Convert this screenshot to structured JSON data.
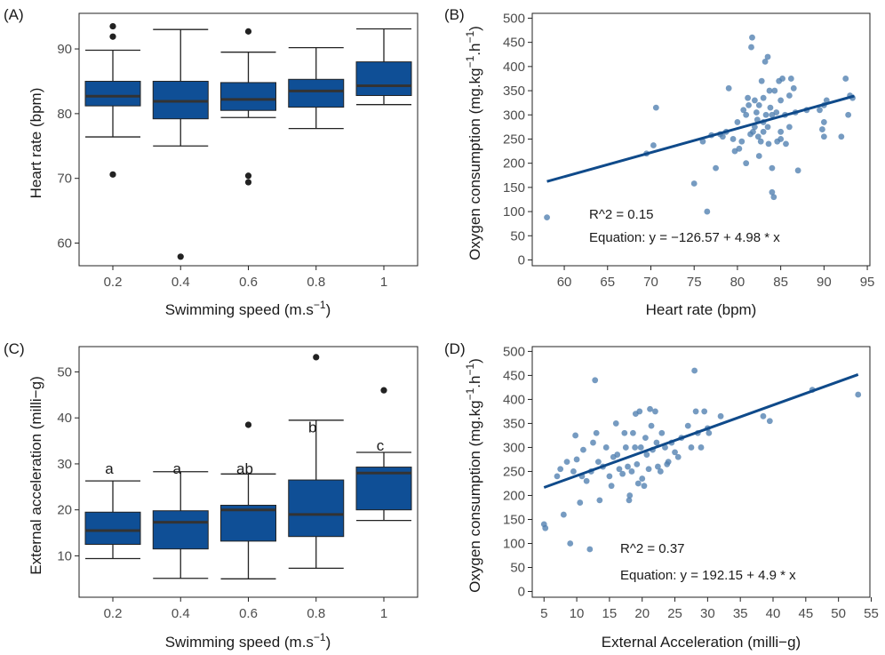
{
  "chart_data": [
    {
      "panel": "(A)",
      "type": "box",
      "xlabel": "Swimming speed (m.s",
      "xlabel_sup": "−1",
      "xlabel_end": ")",
      "ylabel": "Heart rate (bpm)",
      "ylim": [
        56.5,
        95.5
      ],
      "yticks": [
        60,
        70,
        80,
        90
      ],
      "categories": [
        "0.2",
        "0.4",
        "0.6",
        "0.8",
        "1"
      ],
      "boxes": [
        {
          "q1": 81.2,
          "median": 82.7,
          "q3": 85.0,
          "whisker_low": 76.4,
          "whisker_high": 89.8,
          "outliers": [
            93.5,
            91.9,
            70.6
          ]
        },
        {
          "q1": 79.2,
          "median": 81.9,
          "q3": 85.0,
          "whisker_low": 75.0,
          "whisker_high": 93.0,
          "outliers": [
            57.9
          ]
        },
        {
          "q1": 80.5,
          "median": 82.2,
          "q3": 84.8,
          "whisker_low": 79.4,
          "whisker_high": 89.5,
          "outliers": [
            92.7,
            70.4,
            69.4
          ]
        },
        {
          "q1": 81.0,
          "median": 83.5,
          "q3": 85.3,
          "whisker_low": 77.7,
          "whisker_high": 90.2,
          "outliers": []
        },
        {
          "q1": 82.8,
          "median": 84.3,
          "q3": 88.0,
          "whisker_low": 81.4,
          "whisker_high": 93.1,
          "outliers": []
        }
      ],
      "box_color": "#0f4f96"
    },
    {
      "panel": "(B)",
      "type": "scatter",
      "xlabel": "Heart rate (bpm)",
      "ylabel": "Oxygen consumption (mg.kg",
      "ylabel_sup1": "−1",
      "ylabel_mid": ".h",
      "ylabel_sup2": "−1",
      "ylabel_end": ")",
      "xlim": [
        56.3,
        95.3
      ],
      "ylim": [
        -12,
        510
      ],
      "xticks": [
        60,
        65,
        70,
        75,
        80,
        85,
        90,
        95
      ],
      "yticks": [
        0,
        50,
        100,
        150,
        200,
        250,
        300,
        350,
        400,
        450,
        500
      ],
      "points": [
        [
          58,
          88
        ],
        [
          69.5,
          220
        ],
        [
          70.3,
          237
        ],
        [
          70.6,
          315
        ],
        [
          75,
          158
        ],
        [
          76,
          245
        ],
        [
          76.5,
          100
        ],
        [
          77,
          258
        ],
        [
          77.5,
          190
        ],
        [
          78,
          260
        ],
        [
          78.3,
          255
        ],
        [
          78.7,
          265
        ],
        [
          79,
          355
        ],
        [
          79.5,
          250
        ],
        [
          79.7,
          225
        ],
        [
          80,
          285
        ],
        [
          80.2,
          230
        ],
        [
          80.5,
          245
        ],
        [
          80.7,
          310
        ],
        [
          81,
          300
        ],
        [
          81,
          200
        ],
        [
          81.2,
          335
        ],
        [
          81.3,
          320
        ],
        [
          81.5,
          260
        ],
        [
          81.6,
          440
        ],
        [
          81.7,
          460
        ],
        [
          81.8,
          265
        ],
        [
          82,
          275
        ],
        [
          82,
          330
        ],
        [
          82.2,
          305
        ],
        [
          82.3,
          290
        ],
        [
          82.4,
          255
        ],
        [
          82.5,
          320
        ],
        [
          82.5,
          215
        ],
        [
          82.7,
          245
        ],
        [
          82.8,
          370
        ],
        [
          83,
          285
        ],
        [
          83,
          265
        ],
        [
          83,
          335
        ],
        [
          83.2,
          410
        ],
        [
          83.3,
          300
        ],
        [
          83.5,
          420
        ],
        [
          83.5,
          275
        ],
        [
          83.6,
          240
        ],
        [
          83.7,
          350
        ],
        [
          83.8,
          315
        ],
        [
          84,
          300
        ],
        [
          84,
          140
        ],
        [
          84,
          190
        ],
        [
          84.2,
          130
        ],
        [
          84.3,
          350
        ],
        [
          84.5,
          305
        ],
        [
          84.6,
          245
        ],
        [
          84.8,
          370
        ],
        [
          85,
          330
        ],
        [
          85,
          265
        ],
        [
          85,
          250
        ],
        [
          85.2,
          375
        ],
        [
          85.5,
          300
        ],
        [
          85.6,
          240
        ],
        [
          86,
          275
        ],
        [
          86,
          340
        ],
        [
          86.2,
          375
        ],
        [
          86.5,
          355
        ],
        [
          86.7,
          305
        ],
        [
          87,
          185
        ],
        [
          88,
          310
        ],
        [
          89.5,
          310
        ],
        [
          89.8,
          270
        ],
        [
          90,
          320
        ],
        [
          90,
          255
        ],
        [
          90,
          285
        ],
        [
          90.3,
          330
        ],
        [
          92,
          255
        ],
        [
          92.5,
          375
        ],
        [
          92.8,
          300
        ],
        [
          93,
          340
        ],
        [
          93.3,
          335
        ]
      ],
      "fit_x": [
        58,
        93.5
      ],
      "fit_intercept": -126.57,
      "fit_slope": 4.98,
      "r2_text": "R^2 = 0.15",
      "equation_text": "Equation: y = −126.57 + 4.98 * x",
      "point_color": "#4f7fb0",
      "line_color": "#0f4a8a"
    },
    {
      "panel": "(C)",
      "type": "box",
      "xlabel": "Swimming speed (m.s",
      "xlabel_sup": "−1",
      "xlabel_end": ")",
      "ylabel": "External acceleration (milli−g)",
      "ylim": [
        1.0,
        55.5
      ],
      "yticks": [
        10,
        20,
        30,
        40,
        50
      ],
      "categories": [
        "0.2",
        "0.4",
        "0.6",
        "0.8",
        "1"
      ],
      "letters": [
        "a",
        "a",
        "ab",
        "b",
        "c"
      ],
      "letter_y": [
        29,
        29,
        29,
        38,
        34
      ],
      "boxes": [
        {
          "q1": 12.5,
          "median": 15.5,
          "q3": 19.5,
          "whisker_low": 9.4,
          "whisker_high": 26.3,
          "outliers": []
        },
        {
          "q1": 11.5,
          "median": 17.3,
          "q3": 19.8,
          "whisker_low": 5.1,
          "whisker_high": 28.3,
          "outliers": []
        },
        {
          "q1": 13.2,
          "median": 20.0,
          "q3": 21.0,
          "whisker_low": 5.0,
          "whisker_high": 27.8,
          "outliers": [
            38.5
          ]
        },
        {
          "q1": 14.2,
          "median": 19.0,
          "q3": 26.5,
          "whisker_low": 7.3,
          "whisker_high": 39.5,
          "outliers": [
            53.2
          ]
        },
        {
          "q1": 20.0,
          "median": 28.0,
          "q3": 29.3,
          "whisker_low": 17.7,
          "whisker_high": 32.5,
          "outliers": [
            46.0
          ]
        }
      ],
      "box_color": "#0f4f96"
    },
    {
      "panel": "(D)",
      "type": "scatter",
      "xlabel": "External Acceleration (milli−g)",
      "ylabel": "Oxygen consumption (mg.kg",
      "ylabel_sup1": "−1",
      "ylabel_mid": ".h",
      "ylabel_sup2": "−1",
      "ylabel_end": ")",
      "xlim": [
        3.2,
        54.8
      ],
      "ylim": [
        -12,
        510
      ],
      "xticks": [
        5,
        10,
        15,
        20,
        25,
        30,
        35,
        40,
        45,
        50,
        55
      ],
      "yticks": [
        0,
        50,
        100,
        150,
        200,
        250,
        300,
        350,
        400,
        450,
        500
      ],
      "points": [
        [
          5,
          140
        ],
        [
          5.2,
          132
        ],
        [
          7,
          240
        ],
        [
          7.5,
          255
        ],
        [
          8,
          160
        ],
        [
          8.5,
          270
        ],
        [
          9,
          100
        ],
        [
          9.5,
          250
        ],
        [
          9.8,
          325
        ],
        [
          10,
          275
        ],
        [
          10.5,
          185
        ],
        [
          10.8,
          240
        ],
        [
          11,
          295
        ],
        [
          11.5,
          230
        ],
        [
          12,
          88
        ],
        [
          12.2,
          250
        ],
        [
          12.5,
          310
        ],
        [
          12.8,
          440
        ],
        [
          13,
          330
        ],
        [
          13.3,
          270
        ],
        [
          13.5,
          190
        ],
        [
          14,
          260
        ],
        [
          14.5,
          300
        ],
        [
          15,
          240
        ],
        [
          15.3,
          220
        ],
        [
          15.6,
          280
        ],
        [
          16,
          350
        ],
        [
          16.2,
          285
        ],
        [
          16.5,
          255
        ],
        [
          17,
          245
        ],
        [
          17.3,
          330
        ],
        [
          17.5,
          300
        ],
        [
          17.8,
          260
        ],
        [
          18,
          190
        ],
        [
          18.1,
          200
        ],
        [
          18.4,
          250
        ],
        [
          18.6,
          330
        ],
        [
          18.9,
          300
        ],
        [
          19,
          370
        ],
        [
          19.2,
          265
        ],
        [
          19.4,
          225
        ],
        [
          19.6,
          375
        ],
        [
          19.8,
          300
        ],
        [
          20,
          235
        ],
        [
          20.3,
          220
        ],
        [
          20.5,
          320
        ],
        [
          20.7,
          285
        ],
        [
          21,
          255
        ],
        [
          21.2,
          380
        ],
        [
          21.4,
          345
        ],
        [
          21.6,
          295
        ],
        [
          22,
          375
        ],
        [
          22.2,
          310
        ],
        [
          22.4,
          260
        ],
        [
          22.8,
          250
        ],
        [
          23,
          330
        ],
        [
          23.5,
          300
        ],
        [
          23.8,
          265
        ],
        [
          24,
          270
        ],
        [
          24.5,
          310
        ],
        [
          25,
          290
        ],
        [
          25.5,
          280
        ],
        [
          26,
          320
        ],
        [
          27,
          345
        ],
        [
          27.5,
          300
        ],
        [
          28,
          460
        ],
        [
          28.2,
          375
        ],
        [
          28.5,
          330
        ],
        [
          29,
          300
        ],
        [
          29.5,
          375
        ],
        [
          30,
          340
        ],
        [
          30.2,
          330
        ],
        [
          32,
          365
        ],
        [
          38.5,
          365
        ],
        [
          39.5,
          355
        ],
        [
          46,
          420
        ],
        [
          53,
          410
        ]
      ],
      "fit_x": [
        5,
        53
      ],
      "fit_intercept": 192.15,
      "fit_slope": 4.9,
      "r2_text": "R^2 = 0.37",
      "equation_text": "Equation: y = 192.15 + 4.9 * x",
      "point_color": "#4f7fb0",
      "line_color": "#0f4a8a"
    }
  ]
}
